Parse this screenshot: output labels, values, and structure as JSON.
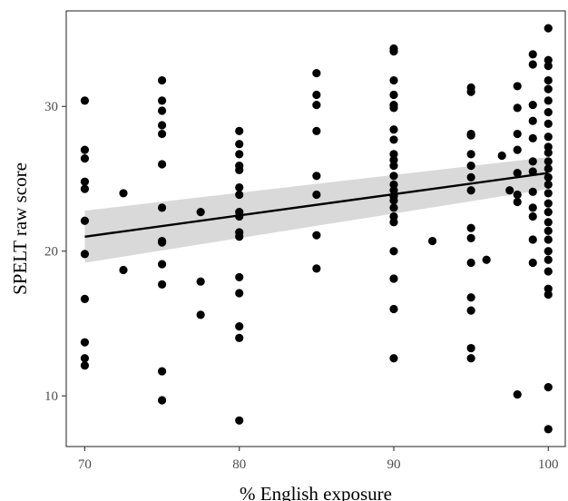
{
  "chart_data": {
    "type": "scatter",
    "title": "",
    "xlabel": "% English exposure",
    "ylabel": "SPELT raw score",
    "xlim": [
      68.8,
      101.1
    ],
    "ylim": [
      6.5,
      36.6
    ],
    "xticks": [
      70,
      80,
      90,
      100
    ],
    "yticks": [
      10,
      20,
      30
    ],
    "grid": false,
    "legend": "none",
    "series": [
      {
        "points": [
          [
            70,
            30.4
          ],
          [
            70,
            27.0
          ],
          [
            70,
            26.4
          ],
          [
            70,
            24.8
          ],
          [
            70,
            24.3
          ],
          [
            70,
            22.1
          ],
          [
            70,
            19.8
          ],
          [
            70,
            16.7
          ],
          [
            70,
            13.7
          ],
          [
            70,
            12.6
          ],
          [
            70,
            12.1
          ],
          [
            72.5,
            24.0
          ],
          [
            72.5,
            18.7
          ],
          [
            75,
            31.8
          ],
          [
            75,
            30.4
          ],
          [
            75,
            29.7
          ],
          [
            75,
            28.7
          ],
          [
            75,
            28.1
          ],
          [
            75,
            26.0
          ],
          [
            75,
            23.0
          ],
          [
            75,
            20.7
          ],
          [
            75,
            20.6
          ],
          [
            75,
            19.1
          ],
          [
            75,
            17.7
          ],
          [
            75,
            11.7
          ],
          [
            75,
            9.7
          ],
          [
            77.5,
            22.7
          ],
          [
            77.5,
            17.9
          ],
          [
            77.5,
            15.6
          ],
          [
            80,
            28.3
          ],
          [
            80,
            27.4
          ],
          [
            80,
            26.7
          ],
          [
            80,
            25.9
          ],
          [
            80,
            25.6
          ],
          [
            80,
            24.4
          ],
          [
            80,
            23.9
          ],
          [
            80,
            22.7
          ],
          [
            80,
            22.4
          ],
          [
            80,
            21.3
          ],
          [
            80,
            21.0
          ],
          [
            80,
            18.2
          ],
          [
            80,
            17.1
          ],
          [
            80,
            14.8
          ],
          [
            80,
            14.0
          ],
          [
            80,
            8.3
          ],
          [
            85,
            32.3
          ],
          [
            85,
            30.8
          ],
          [
            85,
            30.1
          ],
          [
            85,
            28.3
          ],
          [
            85,
            25.2
          ],
          [
            85,
            23.9
          ],
          [
            85,
            21.1
          ],
          [
            85,
            18.8
          ],
          [
            90,
            34.0
          ],
          [
            90,
            33.8
          ],
          [
            90,
            31.8
          ],
          [
            90,
            30.8
          ],
          [
            90,
            30.1
          ],
          [
            90,
            29.9
          ],
          [
            90,
            28.4
          ],
          [
            90,
            27.7
          ],
          [
            90,
            26.7
          ],
          [
            90,
            26.3
          ],
          [
            90,
            25.9
          ],
          [
            90,
            25.2
          ],
          [
            90,
            24.6
          ],
          [
            90,
            24.2
          ],
          [
            90,
            23.8
          ],
          [
            90,
            23.5
          ],
          [
            90,
            23.0
          ],
          [
            90,
            22.4
          ],
          [
            90,
            22.0
          ],
          [
            90,
            20.0
          ],
          [
            90,
            18.1
          ],
          [
            90,
            16.0
          ],
          [
            90,
            12.6
          ],
          [
            92.5,
            20.7
          ],
          [
            95,
            31.3
          ],
          [
            95,
            31.0
          ],
          [
            95,
            28.1
          ],
          [
            95,
            28.0
          ],
          [
            95,
            26.7
          ],
          [
            95,
            25.9
          ],
          [
            95,
            25.1
          ],
          [
            95,
            24.2
          ],
          [
            95,
            21.6
          ],
          [
            95,
            20.9
          ],
          [
            95,
            19.2
          ],
          [
            95,
            16.8
          ],
          [
            95,
            15.9
          ],
          [
            95,
            13.3
          ],
          [
            95,
            12.6
          ],
          [
            96,
            19.4
          ],
          [
            97,
            26.6
          ],
          [
            97.5,
            24.2
          ],
          [
            98,
            31.4
          ],
          [
            98,
            29.9
          ],
          [
            98,
            28.1
          ],
          [
            98,
            27.0
          ],
          [
            98,
            25.4
          ],
          [
            98,
            23.9
          ],
          [
            98,
            23.4
          ],
          [
            98,
            10.1
          ],
          [
            99,
            33.6
          ],
          [
            99,
            32.9
          ],
          [
            99,
            30.1
          ],
          [
            99,
            29.0
          ],
          [
            99,
            27.8
          ],
          [
            99,
            26.2
          ],
          [
            99,
            25.5
          ],
          [
            99,
            24.1
          ],
          [
            99,
            23.0
          ],
          [
            99,
            22.4
          ],
          [
            99,
            20.8
          ],
          [
            99,
            19.2
          ],
          [
            100,
            35.4
          ],
          [
            100,
            33.2
          ],
          [
            100,
            32.8
          ],
          [
            100,
            31.8
          ],
          [
            100,
            31.2
          ],
          [
            100,
            30.4
          ],
          [
            100,
            29.6
          ],
          [
            100,
            28.8
          ],
          [
            100,
            27.9
          ],
          [
            100,
            27.2
          ],
          [
            100,
            26.8
          ],
          [
            100,
            26.2
          ],
          [
            100,
            25.7
          ],
          [
            100,
            25.1
          ],
          [
            100,
            24.6
          ],
          [
            100,
            24.0
          ],
          [
            100,
            23.3
          ],
          [
            100,
            22.7
          ],
          [
            100,
            22.0
          ],
          [
            100,
            21.4
          ],
          [
            100,
            20.8
          ],
          [
            100,
            20.0
          ],
          [
            100,
            19.4
          ],
          [
            100,
            18.6
          ],
          [
            100,
            17.4
          ],
          [
            100,
            17.0
          ],
          [
            100,
            10.6
          ],
          [
            100,
            7.7
          ]
        ]
      }
    ],
    "fit": {
      "type": "linear",
      "x": [
        70,
        100
      ],
      "y": [
        21.0,
        25.4
      ],
      "ci_upper": [
        22.8,
        26.5
      ],
      "ci_lower": [
        19.2,
        24.3
      ],
      "line_color": "#000000",
      "band_color": "#d9d9d9"
    },
    "point_color": "#000000"
  }
}
